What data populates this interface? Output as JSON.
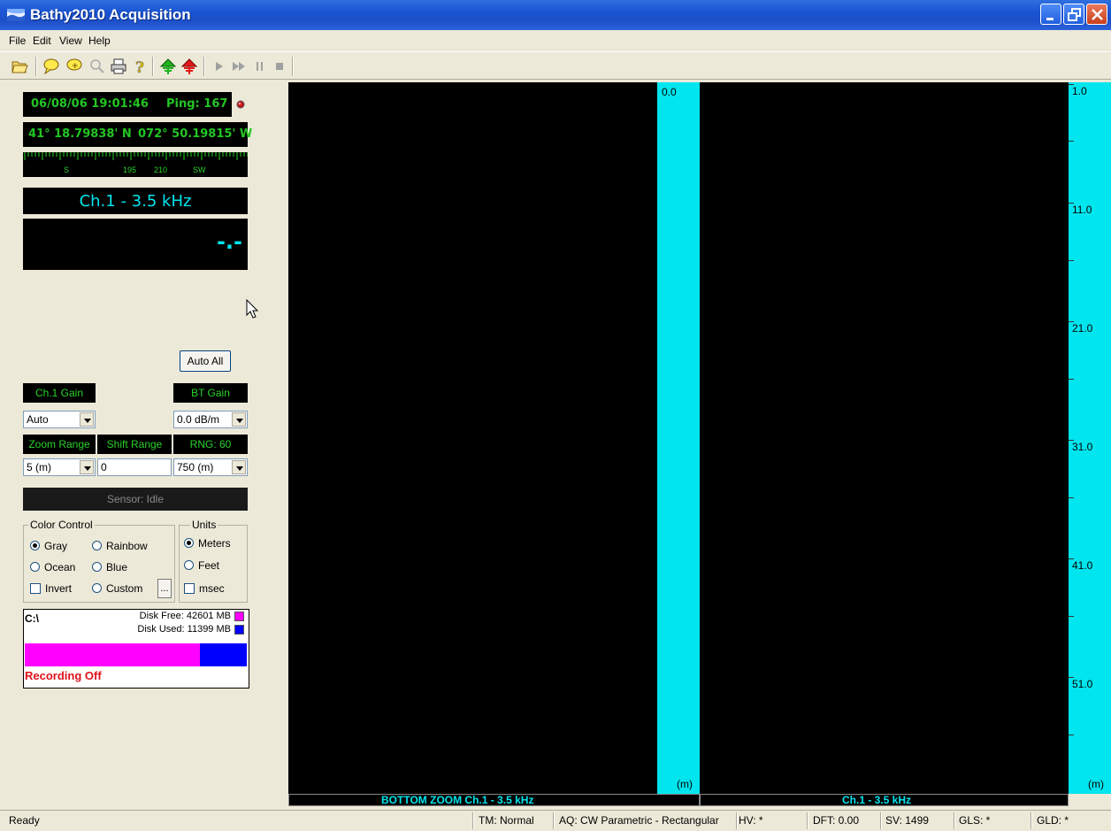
{
  "window": {
    "title": "Bathy2010 Acquisition"
  },
  "menu": {
    "file": "File",
    "edit": "Edit",
    "view": "View",
    "help": "Help"
  },
  "toolbar": {
    "icons": [
      "open-folder-icon",
      "comment-icon",
      "marker-icon",
      "zoom-icon",
      "print-icon",
      "help-icon",
      "green-ping-icon",
      "red-ping-icon",
      "play-icon",
      "fast-forward-icon",
      "pause-icon",
      "stop-icon"
    ]
  },
  "left": {
    "datetime": "06/08/06 19:01:46",
    "ping": "Ping: 167",
    "lat": "41° 18.79838' N",
    "lon": "072° 50.19815' W",
    "compass": {
      "labels": [
        "S",
        "195",
        "210",
        "SW"
      ]
    },
    "channel_title": "Ch.1 - 3.5 kHz",
    "depth_readout": "-.-",
    "auto_all": "Auto All",
    "ch1_gain_label": "Ch.1 Gain",
    "bt_gain_label": "BT Gain",
    "ch1_gain_value": "Auto",
    "bt_gain_value": "0.0 dB/m",
    "zoom_range_label": "Zoom Range",
    "shift_range_label": "Shift Range",
    "rng_label": "RNG: 60",
    "zoom_range_value": "5 (m)",
    "shift_range_value": "0",
    "rng_value": "750 (m)",
    "sensor_status": "Sensor: Idle",
    "color_control": {
      "title": "Color Control",
      "gray": "Gray",
      "rainbow": "Rainbow",
      "ocean": "Ocean",
      "blue": "Blue",
      "invert": "Invert",
      "custom": "Custom",
      "custom_btn": "...",
      "selected": "Gray"
    },
    "units": {
      "title": "Units",
      "meters": "Meters",
      "feet": "Feet",
      "msec": "msec",
      "selected": "Meters"
    },
    "disk": {
      "drive": "C:\\",
      "free": "Disk Free: 42601 MB",
      "used": "Disk Used: 11399 MB",
      "free_fraction": 0.789,
      "free_color": "#ff00ff",
      "used_color": "#0000ff",
      "recording": "Recording Off"
    }
  },
  "displays": {
    "zoom_label": "BOTTOM ZOOM Ch.1 - 3.5 kHz",
    "main_label": "Ch.1 - 3.5 kHz",
    "zoom_scale_top": "0.0",
    "unit": "(m)",
    "main_scale": [
      "1.0",
      "11.0",
      "21.0",
      "31.0",
      "41.0",
      "51.0"
    ],
    "accent": "#00e5ee"
  },
  "status": {
    "ready": "Ready",
    "tm": "TM: Normal",
    "aq": "AQ: CW Parametric - Rectangular",
    "hv": "HV: *",
    "dft": "DFT: 0.00",
    "sv": "SV: 1499",
    "gls": "GLS: *",
    "gld": "GLD: *"
  }
}
